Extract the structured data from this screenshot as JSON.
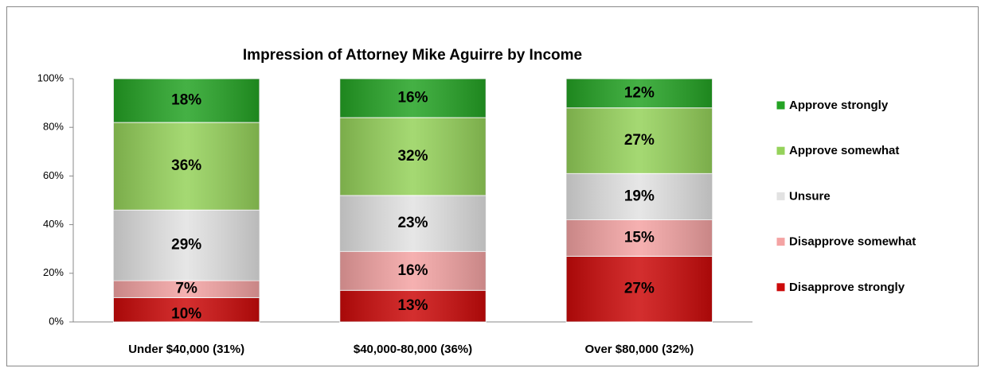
{
  "chart_data": {
    "type": "stacked_bar",
    "title": "Impression of Attorney Mike Aguirre by Income",
    "categories": [
      "Under $40,000 (31%)",
      "$40,000-80,000 (36%)",
      "Over $80,000 (32%)"
    ],
    "series": [
      {
        "name": "Disapprove strongly",
        "color": "#cc0a0a",
        "values": [
          10,
          13,
          27
        ],
        "value_labels": [
          "10%",
          "13%",
          "27%"
        ]
      },
      {
        "name": "Disapprove somewhat",
        "color": "#f4a3a3",
        "values": [
          7,
          16,
          15
        ],
        "value_labels": [
          "7%",
          "16%",
          "15%"
        ]
      },
      {
        "name": "Unsure",
        "color": "#e2e2e2",
        "values": [
          29,
          23,
          19
        ],
        "value_labels": [
          "29%",
          "23%",
          "19%"
        ]
      },
      {
        "name": "Approve somewhat",
        "color": "#95d25a",
        "values": [
          36,
          32,
          27
        ],
        "value_labels": [
          "36%",
          "32%",
          "27%"
        ]
      },
      {
        "name": "Approve strongly",
        "color": "#24a324",
        "values": [
          18,
          16,
          12
        ],
        "value_labels": [
          "18%",
          "16%",
          "12%"
        ]
      }
    ],
    "ylim": [
      0,
      100
    ],
    "yticks": [
      {
        "value": 0,
        "label": "0%"
      },
      {
        "value": 20,
        "label": "20%"
      },
      {
        "value": 40,
        "label": "40%"
      },
      {
        "value": 60,
        "label": "60%"
      },
      {
        "value": 80,
        "label": "80%"
      },
      {
        "value": 100,
        "label": "100%"
      }
    ],
    "grid": false,
    "legend": "right"
  }
}
